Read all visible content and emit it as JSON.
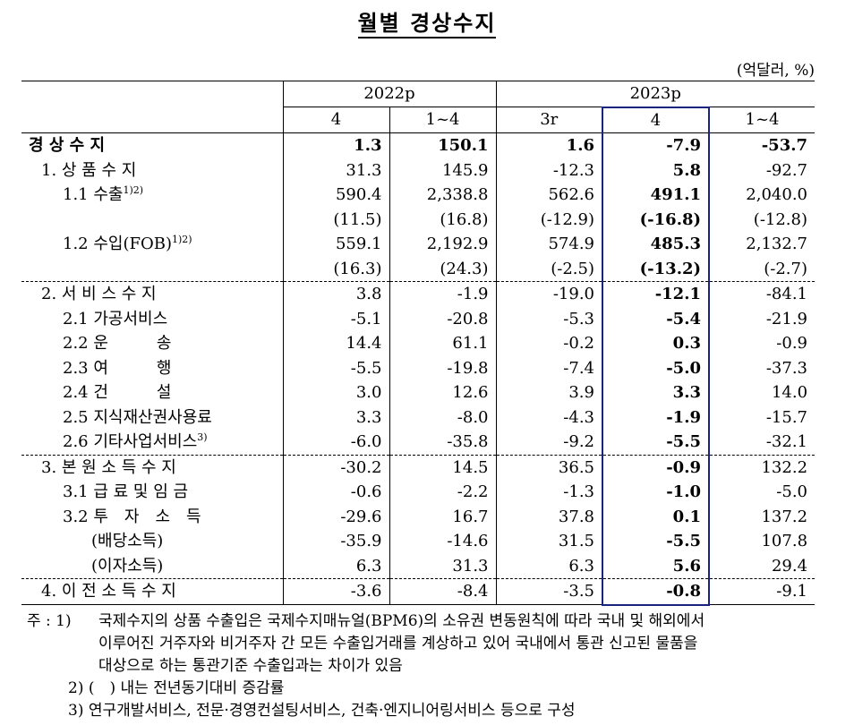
{
  "title": "월별 경상수지",
  "unit": "(억달러, %)",
  "header": {
    "year_2022": "2022p",
    "year_2023": "2023p",
    "cols": [
      "4",
      "1~4",
      "3r",
      "4",
      "1~4"
    ]
  },
  "rows": [
    {
      "label": "경 상 수 지",
      "sup": "",
      "v": [
        "1.3",
        "150.1",
        "1.6",
        "-7.9",
        "-53.7"
      ],
      "bold": true,
      "indent": 0
    },
    {
      "label": "1. 상 품 수 지",
      "sup": "",
      "v": [
        "31.3",
        "145.9",
        "-12.3",
        "5.8",
        "-92.7"
      ],
      "bold": false,
      "indent": 1
    },
    {
      "label": "1.1 수출",
      "sup": "1)2)",
      "v": [
        "590.4",
        "2,338.8",
        "562.6",
        "491.1",
        "2,040.0"
      ],
      "bold": false,
      "indent": 2
    },
    {
      "label": "",
      "sup": "",
      "v": [
        "(11.5)",
        "(16.8)",
        "(-12.9)",
        "(-16.8)",
        "(-12.8)"
      ],
      "bold": false,
      "indent": 2
    },
    {
      "label": "1.2 수입(FOB)",
      "sup": "1)2)",
      "v": [
        "559.1",
        "2,192.9",
        "574.9",
        "485.3",
        "2,132.7"
      ],
      "bold": false,
      "indent": 2
    },
    {
      "label": "",
      "sup": "",
      "v": [
        "(16.3)",
        "(24.3)",
        "(-2.5)",
        "(-13.2)",
        "(-2.7)"
      ],
      "bold": false,
      "indent": 2
    },
    {
      "label": "2. 서 비 스 수 지",
      "sup": "",
      "v": [
        "3.8",
        "-1.9",
        "-19.0",
        "-12.1",
        "-84.1"
      ],
      "bold": false,
      "indent": 1,
      "sep": true
    },
    {
      "label": "2.1 가공서비스",
      "sup": "",
      "v": [
        "-5.1",
        "-20.8",
        "-5.3",
        "-5.4",
        "-21.9"
      ],
      "bold": false,
      "indent": 2
    },
    {
      "label": "2.2 운　　　송",
      "sup": "",
      "v": [
        "14.4",
        "61.1",
        "-0.2",
        "0.3",
        "-0.9"
      ],
      "bold": false,
      "indent": 2
    },
    {
      "label": "2.3 여　　　행",
      "sup": "",
      "v": [
        "-5.5",
        "-19.8",
        "-7.4",
        "-5.0",
        "-37.3"
      ],
      "bold": false,
      "indent": 2
    },
    {
      "label": "2.4 건　　　설",
      "sup": "",
      "v": [
        "3.0",
        "12.6",
        "3.9",
        "3.3",
        "14.0"
      ],
      "bold": false,
      "indent": 2
    },
    {
      "label": "2.5 지식재산권사용료",
      "sup": "",
      "v": [
        "3.3",
        "-8.0",
        "-4.3",
        "-1.9",
        "-15.7"
      ],
      "bold": false,
      "indent": 2
    },
    {
      "label": "2.6 기타사업서비스",
      "sup": "3)",
      "v": [
        "-6.0",
        "-35.8",
        "-9.2",
        "-5.5",
        "-32.1"
      ],
      "bold": false,
      "indent": 2
    },
    {
      "label": "3. 본 원 소 득 수 지",
      "sup": "",
      "v": [
        "-30.2",
        "14.5",
        "36.5",
        "-0.9",
        "132.2"
      ],
      "bold": false,
      "indent": 1,
      "sep": true
    },
    {
      "label": "3.1 급 료 및 임 금",
      "sup": "",
      "v": [
        "-0.6",
        "-2.2",
        "-1.3",
        "-1.0",
        "-5.0"
      ],
      "bold": false,
      "indent": 2
    },
    {
      "label": "3.2 투　자　소　득",
      "sup": "",
      "v": [
        "-29.6",
        "16.7",
        "37.8",
        "0.1",
        "137.2"
      ],
      "bold": false,
      "indent": 2
    },
    {
      "label": "(배당소득)",
      "sup": "",
      "v": [
        "-35.9",
        "-14.6",
        "31.5",
        "-5.5",
        "107.8"
      ],
      "bold": false,
      "indent": 3
    },
    {
      "label": "(이자소득)",
      "sup": "",
      "v": [
        "6.3",
        "31.3",
        "6.3",
        "5.6",
        "29.4"
      ],
      "bold": false,
      "indent": 3
    },
    {
      "label": "4. 이 전 소 득 수 지",
      "sup": "",
      "v": [
        "-3.6",
        "-8.4",
        "-3.5",
        "-0.8",
        "-9.1"
      ],
      "bold": false,
      "indent": 1,
      "sep": true
    }
  ],
  "notes": {
    "prefix": "주 : 1)",
    "n1_line1": "국제수지의 상품 수출입은 국제수지매뉴얼(BPM6)의 소유권 변동원칙에 따라 국내 및 해외에서",
    "n1_line2": "이루어진 거주자와 비거주자 간 모든 수출입거래를 계상하고 있어 국내에서 통관 신고된 물품을",
    "n1_line3": "대상으로 하는 통관기준 수출입과는 차이가 있음",
    "n2": "2) (　) 내는 전년동기대비 증감률",
    "n3": "3) 연구개발서비스, 전문·경영컨설팅서비스, 건축·엔지니어링서비스 등으로 구성"
  },
  "colors": {
    "highlight": "#1a237e"
  }
}
